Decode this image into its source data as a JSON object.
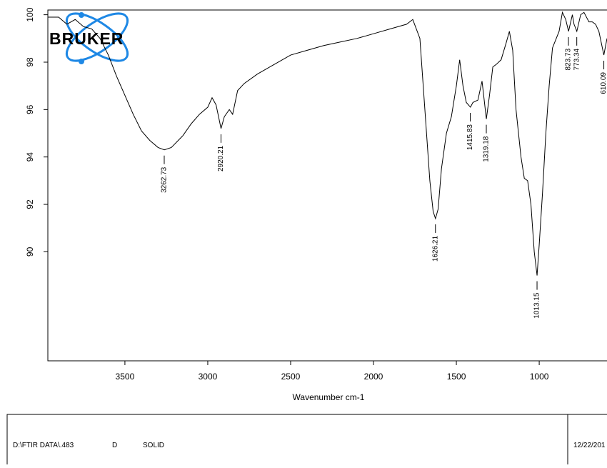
{
  "logo": "BRUKER",
  "chart_data": {
    "type": "line",
    "xlabel": "Wavenumber cm-1",
    "color": "#000000",
    "grid": false,
    "xlim": [
      3965,
      591
    ],
    "ylim": [
      85.4,
      100.2
    ],
    "xticks": [
      3500,
      3000,
      2500,
      2000,
      1500,
      1000
    ],
    "yticks": [
      90,
      92,
      94,
      96,
      98,
      100
    ],
    "x": [
      3965,
      3900,
      3850,
      3800,
      3750,
      3700,
      3650,
      3600,
      3550,
      3500,
      3450,
      3400,
      3350,
      3300,
      3262,
      3220,
      3150,
      3100,
      3050,
      3000,
      2974,
      2950,
      2920,
      2900,
      2870,
      2850,
      2820,
      2780,
      2700,
      2600,
      2500,
      2400,
      2300,
      2200,
      2100,
      2000,
      1900,
      1800,
      1763,
      1720,
      1700,
      1680,
      1660,
      1640,
      1626,
      1610,
      1590,
      1560,
      1530,
      1500,
      1480,
      1460,
      1440,
      1415,
      1400,
      1370,
      1345,
      1319,
      1300,
      1280,
      1260,
      1230,
      1200,
      1180,
      1160,
      1140,
      1110,
      1090,
      1070,
      1050,
      1030,
      1013,
      1000,
      980,
      960,
      940,
      920,
      880,
      860,
      840,
      823,
      800,
      790,
      773,
      750,
      730,
      700,
      680,
      660,
      640,
      610,
      591
    ],
    "values": [
      99.9,
      99.9,
      99.6,
      99.8,
      99.5,
      99.4,
      99.0,
      98.3,
      97.4,
      96.6,
      95.8,
      95.1,
      94.7,
      94.4,
      94.3,
      94.4,
      94.9,
      95.4,
      95.8,
      96.1,
      96.5,
      96.2,
      95.2,
      95.7,
      96.0,
      95.8,
      96.8,
      97.1,
      97.5,
      97.9,
      98.3,
      98.5,
      98.7,
      98.85,
      99.0,
      99.2,
      99.4,
      99.6,
      99.8,
      99.0,
      97.0,
      95.0,
      93.0,
      91.7,
      91.4,
      91.8,
      93.5,
      95.0,
      95.7,
      97.0,
      98.1,
      97.0,
      96.3,
      96.1,
      96.3,
      96.4,
      97.2,
      95.6,
      96.6,
      97.8,
      97.9,
      98.1,
      98.8,
      99.3,
      98.5,
      96.0,
      94.0,
      93.1,
      93.0,
      92.0,
      90.0,
      89.0,
      90.3,
      92.5,
      95.0,
      97.0,
      98.6,
      99.3,
      100.1,
      99.8,
      99.3,
      100.0,
      99.6,
      99.3,
      100.0,
      100.1,
      99.7,
      99.7,
      99.6,
      99.3,
      98.3,
      99.0
    ],
    "peaks": [
      {
        "x": 3262.73,
        "y": 94.3
      },
      {
        "x": 2920.21,
        "y": 95.2
      },
      {
        "x": 1626.21,
        "y": 91.4
      },
      {
        "x": 1415.83,
        "y": 96.1
      },
      {
        "x": 1319.18,
        "y": 95.6
      },
      {
        "x": 1013.15,
        "y": 89.0
      },
      {
        "x": 823.73,
        "y": 99.3
      },
      {
        "x": 773.34,
        "y": 99.3
      },
      {
        "x": 610.09,
        "y": 98.3
      }
    ]
  },
  "footer": {
    "path": "D:\\FTIR DATA\\.483",
    "code": "D",
    "sample": "SOLID",
    "date": "12/22/201"
  }
}
